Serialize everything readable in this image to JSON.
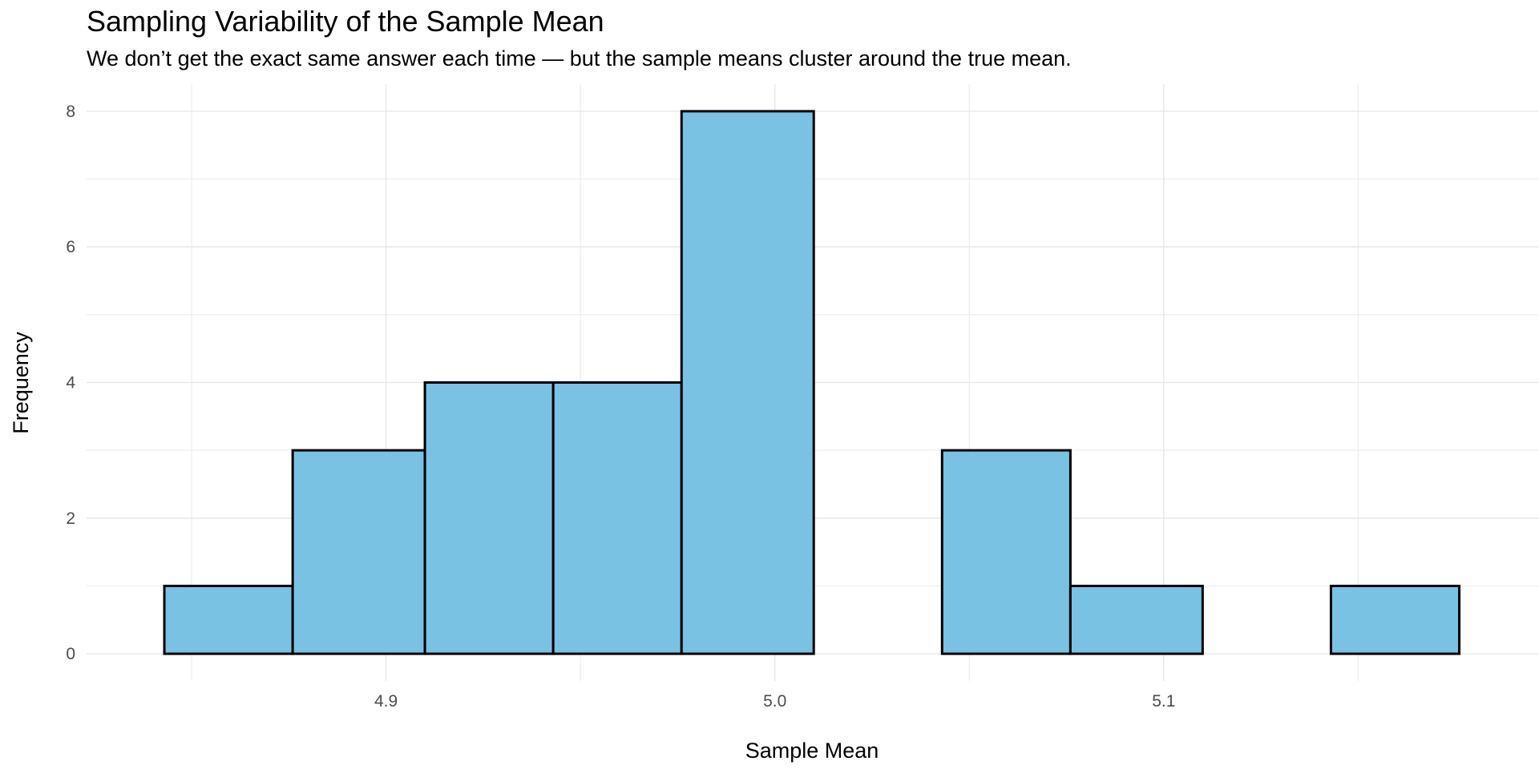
{
  "chart_data": {
    "type": "bar",
    "subtype": "histogram",
    "title": "Sampling Variability of the Sample Mean",
    "subtitle": "We don’t get the exact same answer each time — but the sample means cluster around the true mean.",
    "xlabel": "Sample Mean",
    "ylabel": "Frequency",
    "bin_width": 0.0333,
    "bins": [
      {
        "start": 4.843,
        "end": 4.876,
        "count": 1
      },
      {
        "start": 4.876,
        "end": 4.91,
        "count": 3
      },
      {
        "start": 4.91,
        "end": 4.943,
        "count": 4
      },
      {
        "start": 4.943,
        "end": 4.976,
        "count": 4
      },
      {
        "start": 4.976,
        "end": 5.01,
        "count": 8
      },
      {
        "start": 5.01,
        "end": 5.043,
        "count": 0
      },
      {
        "start": 5.043,
        "end": 5.076,
        "count": 3
      },
      {
        "start": 5.076,
        "end": 5.11,
        "count": 1
      },
      {
        "start": 5.11,
        "end": 5.143,
        "count": 0
      },
      {
        "start": 5.143,
        "end": 5.176,
        "count": 1
      }
    ],
    "xlim": [
      4.823,
      5.1965
    ],
    "ylim": [
      -0.4,
      8.4
    ],
    "x_ticks": [
      4.9,
      5.0,
      5.1
    ],
    "x_tick_labels": [
      "4.9",
      "5.0",
      "5.1"
    ],
    "y_ticks": [
      0,
      2,
      4,
      6,
      8
    ],
    "y_tick_labels": [
      "0",
      "2",
      "4",
      "6",
      "8"
    ],
    "grid": true,
    "legend": "none",
    "colors": {
      "bar_fill": "#7AC2E4",
      "bar_stroke": "#000000",
      "grid": "#e6e6e6",
      "background": "#ffffff"
    }
  }
}
